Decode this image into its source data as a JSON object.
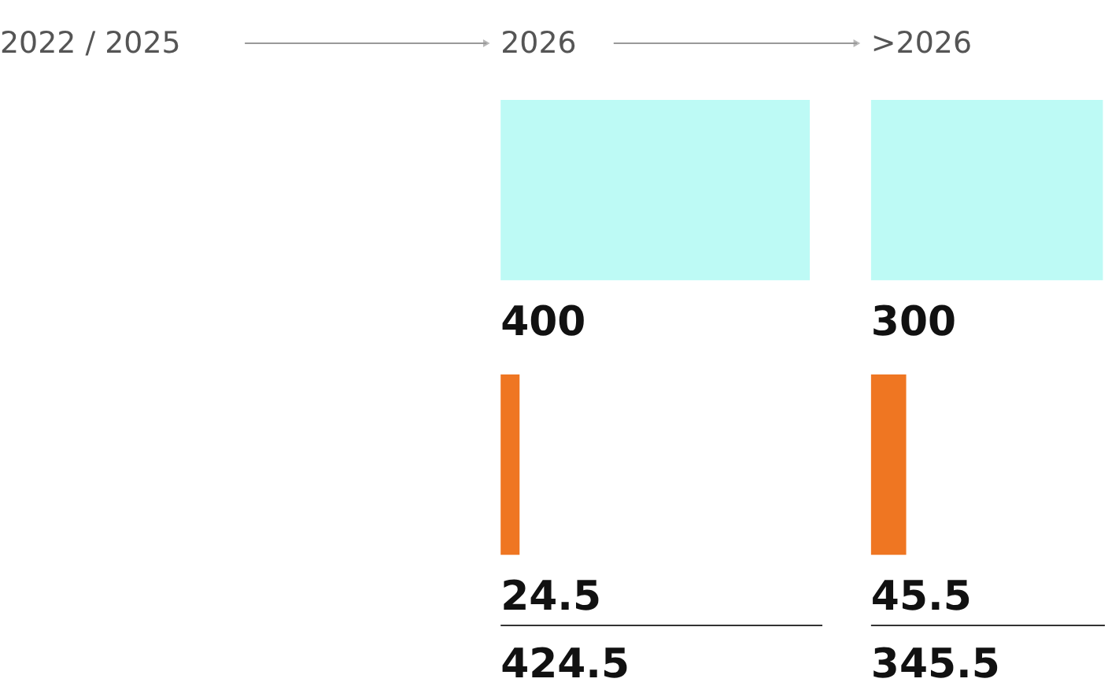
{
  "chart_data": [
    {
      "type": "other",
      "title": "2022 / 2025"
    },
    {
      "type": "bar",
      "orientation": "horizontal",
      "title": "2026",
      "categories": [
        null,
        null
      ],
      "values": [
        400,
        24.5
      ],
      "colors": [
        "#bdfaf5",
        "#ef7622"
      ],
      "data_labels": true,
      "annotations": [
        "424.5"
      ],
      "tick_labels": false
    },
    {
      "type": "bar",
      "orientation": "horizontal",
      "title": ">2026",
      "categories": [
        null,
        null
      ],
      "values": [
        300,
        45.5
      ],
      "colors": [
        "#bdfaf5",
        "#ef7622"
      ],
      "data_labels": true,
      "annotations": [
        "345.5"
      ],
      "tick_labels": false
    }
  ]
}
